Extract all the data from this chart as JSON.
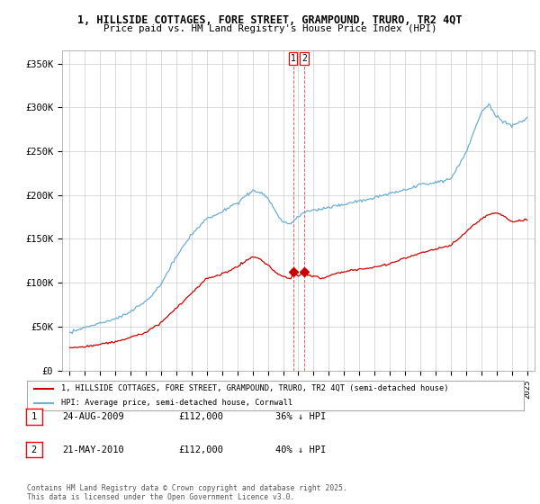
{
  "title1": "1, HILLSIDE COTTAGES, FORE STREET, GRAMPOUND, TRURO, TR2 4QT",
  "title2": "Price paid vs. HM Land Registry's House Price Index (HPI)",
  "ylabel_ticks": [
    "£0",
    "£50K",
    "£100K",
    "£150K",
    "£200K",
    "£250K",
    "£300K",
    "£350K"
  ],
  "ytick_values": [
    0,
    50000,
    100000,
    150000,
    200000,
    250000,
    300000,
    350000
  ],
  "ylim": [
    0,
    365000
  ],
  "xlim_start": 1994.5,
  "xlim_end": 2025.5,
  "legend_line1": "1, HILLSIDE COTTAGES, FORE STREET, GRAMPOUND, TRURO, TR2 4QT (semi-detached house)",
  "legend_line2": "HPI: Average price, semi-detached house, Cornwall",
  "annotation1_label": "1",
  "annotation1_date": "24-AUG-2009",
  "annotation1_price": "£112,000",
  "annotation1_hpi": "36% ↓ HPI",
  "annotation2_label": "2",
  "annotation2_date": "21-MAY-2010",
  "annotation2_price": "£112,000",
  "annotation2_hpi": "40% ↓ HPI",
  "transaction1_x": 2009.65,
  "transaction1_y": 112000,
  "transaction2_x": 2010.39,
  "transaction2_y": 112000,
  "vline1_x": 2009.65,
  "vline2_x": 2010.39,
  "red_color": "#cc0000",
  "blue_color": "#6baed6",
  "footer_text": "Contains HM Land Registry data © Crown copyright and database right 2025.\nThis data is licensed under the Open Government Licence v3.0.",
  "background_color": "#ffffff",
  "grid_color": "#cccccc"
}
